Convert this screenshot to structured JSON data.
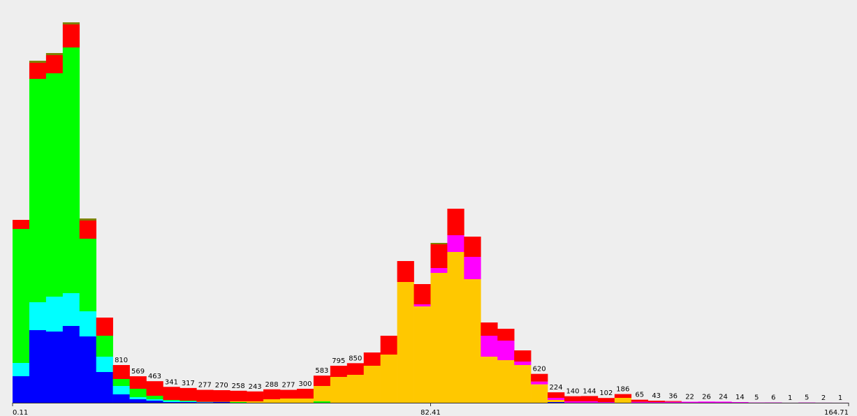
{
  "chart_data": {
    "type": "stacked-histogram",
    "bins": [
      0.11,
      3.402,
      6.694,
      9.986,
      13.278,
      16.57,
      19.862,
      23.154,
      26.446,
      29.738,
      33.03,
      36.322,
      39.614,
      42.906,
      46.198,
      49.49,
      52.782,
      56.074,
      59.366,
      62.658,
      65.95,
      69.242,
      72.534,
      75.826,
      79.118,
      82.41,
      85.702,
      88.994,
      92.286,
      95.578,
      98.87,
      102.162,
      105.454,
      108.746,
      112.038,
      115.33,
      118.622,
      121.914,
      125.206,
      128.498,
      131.79,
      135.082,
      138.374,
      141.666,
      144.958,
      148.25,
      151.542,
      154.834,
      158.126,
      161.418,
      164.71
    ],
    "xlim": [
      0.11,
      164.71
    ],
    "xticks": [
      0.11,
      82.41,
      164.71
    ],
    "series": [
      {
        "color": "#0000ff",
        "values": [
          570,
          1560,
          1530,
          1650,
          1425,
          660,
          180,
          75,
          45,
          15,
          15,
          10,
          15,
          0,
          0,
          0,
          0,
          0,
          0,
          0,
          0,
          0,
          0,
          0,
          0,
          0,
          0,
          0,
          0,
          0,
          0,
          0,
          15,
          0,
          0,
          0,
          0,
          0,
          0,
          0,
          0,
          0,
          0,
          0,
          0,
          0,
          0,
          0,
          0,
          0
        ]
      },
      {
        "color": "#00ffff",
        "values": [
          285,
          600,
          750,
          705,
          540,
          330,
          180,
          45,
          30,
          30,
          15,
          5,
          0,
          0,
          0,
          0,
          0,
          0,
          0,
          0,
          0,
          0,
          0,
          0,
          0,
          0,
          0,
          0,
          0,
          0,
          0,
          0,
          0,
          0,
          0,
          0,
          0,
          0,
          0,
          0,
          0,
          0,
          0,
          0,
          0,
          0,
          0,
          0,
          0,
          0
        ]
      },
      {
        "color": "#00ff00",
        "values": [
          2880,
          4800,
          4800,
          5280,
          1560,
          450,
          150,
          180,
          75,
          15,
          15,
          5,
          5,
          15,
          0,
          0,
          0,
          0,
          30,
          0,
          0,
          0,
          0,
          0,
          0,
          0,
          0,
          0,
          0,
          0,
          0,
          0,
          0,
          0,
          0,
          0,
          0,
          0,
          0,
          0,
          0,
          0,
          0,
          0,
          0,
          0,
          0,
          0,
          0,
          0
        ]
      },
      {
        "color": "#ffc800",
        "values": [
          0,
          0,
          0,
          0,
          0,
          0,
          0,
          0,
          0,
          0,
          0,
          0,
          0,
          15,
          30,
          75,
          90,
          90,
          330,
          555,
          600,
          795,
          1035,
          2595,
          2070,
          2790,
          3240,
          2655,
          990,
          915,
          810,
          395,
          45,
          0,
          0,
          0,
          105,
          0,
          0,
          0,
          0,
          0,
          0,
          0,
          0,
          0,
          0,
          0,
          0,
          0
        ]
      },
      {
        "color": "#ff00ff",
        "values": [
          0,
          0,
          0,
          0,
          0,
          0,
          0,
          0,
          0,
          0,
          0,
          0,
          0,
          0,
          0,
          0,
          0,
          0,
          0,
          0,
          0,
          0,
          0,
          0,
          45,
          105,
          360,
          480,
          450,
          420,
          75,
          60,
          45,
          30,
          30,
          15,
          0,
          20,
          15,
          20,
          22,
          26,
          24,
          14,
          5,
          6,
          1,
          5,
          2,
          1
        ]
      },
      {
        "color": "#ff0000",
        "values": [
          195,
          345,
          390,
          495,
          390,
          390,
          300,
          269,
          313,
          281,
          272,
          257,
          250,
          228,
          213,
          213,
          187,
          210,
          223,
          240,
          250,
          285,
          405,
          450,
          435,
          510,
          570,
          435,
          285,
          255,
          240,
          165,
          119,
          110,
          114,
          87,
          81,
          45,
          28,
          16,
          0,
          0,
          0,
          0,
          0,
          0,
          0,
          0,
          0,
          0
        ]
      },
      {
        "color": "#808000",
        "values": [
          0,
          45,
          45,
          45,
          45,
          0,
          0,
          0,
          0,
          0,
          0,
          0,
          0,
          0,
          0,
          0,
          0,
          0,
          0,
          0,
          0,
          0,
          0,
          0,
          0,
          30,
          0,
          0,
          0,
          0,
          0,
          0,
          0,
          0,
          0,
          0,
          0,
          0,
          0,
          0,
          0,
          0,
          0,
          0,
          0,
          0,
          0,
          0,
          0,
          0
        ]
      }
    ],
    "total_labels": [
      null,
      null,
      null,
      null,
      null,
      null,
      810,
      569,
      463,
      341,
      317,
      277,
      270,
      258,
      243,
      288,
      277,
      300,
      583,
      795,
      850,
      null,
      null,
      null,
      null,
      null,
      null,
      null,
      null,
      null,
      null,
      620,
      224,
      140,
      144,
      102,
      186,
      65,
      43,
      36,
      22,
      26,
      24,
      14,
      5,
      6,
      1,
      5,
      2,
      1
    ]
  }
}
